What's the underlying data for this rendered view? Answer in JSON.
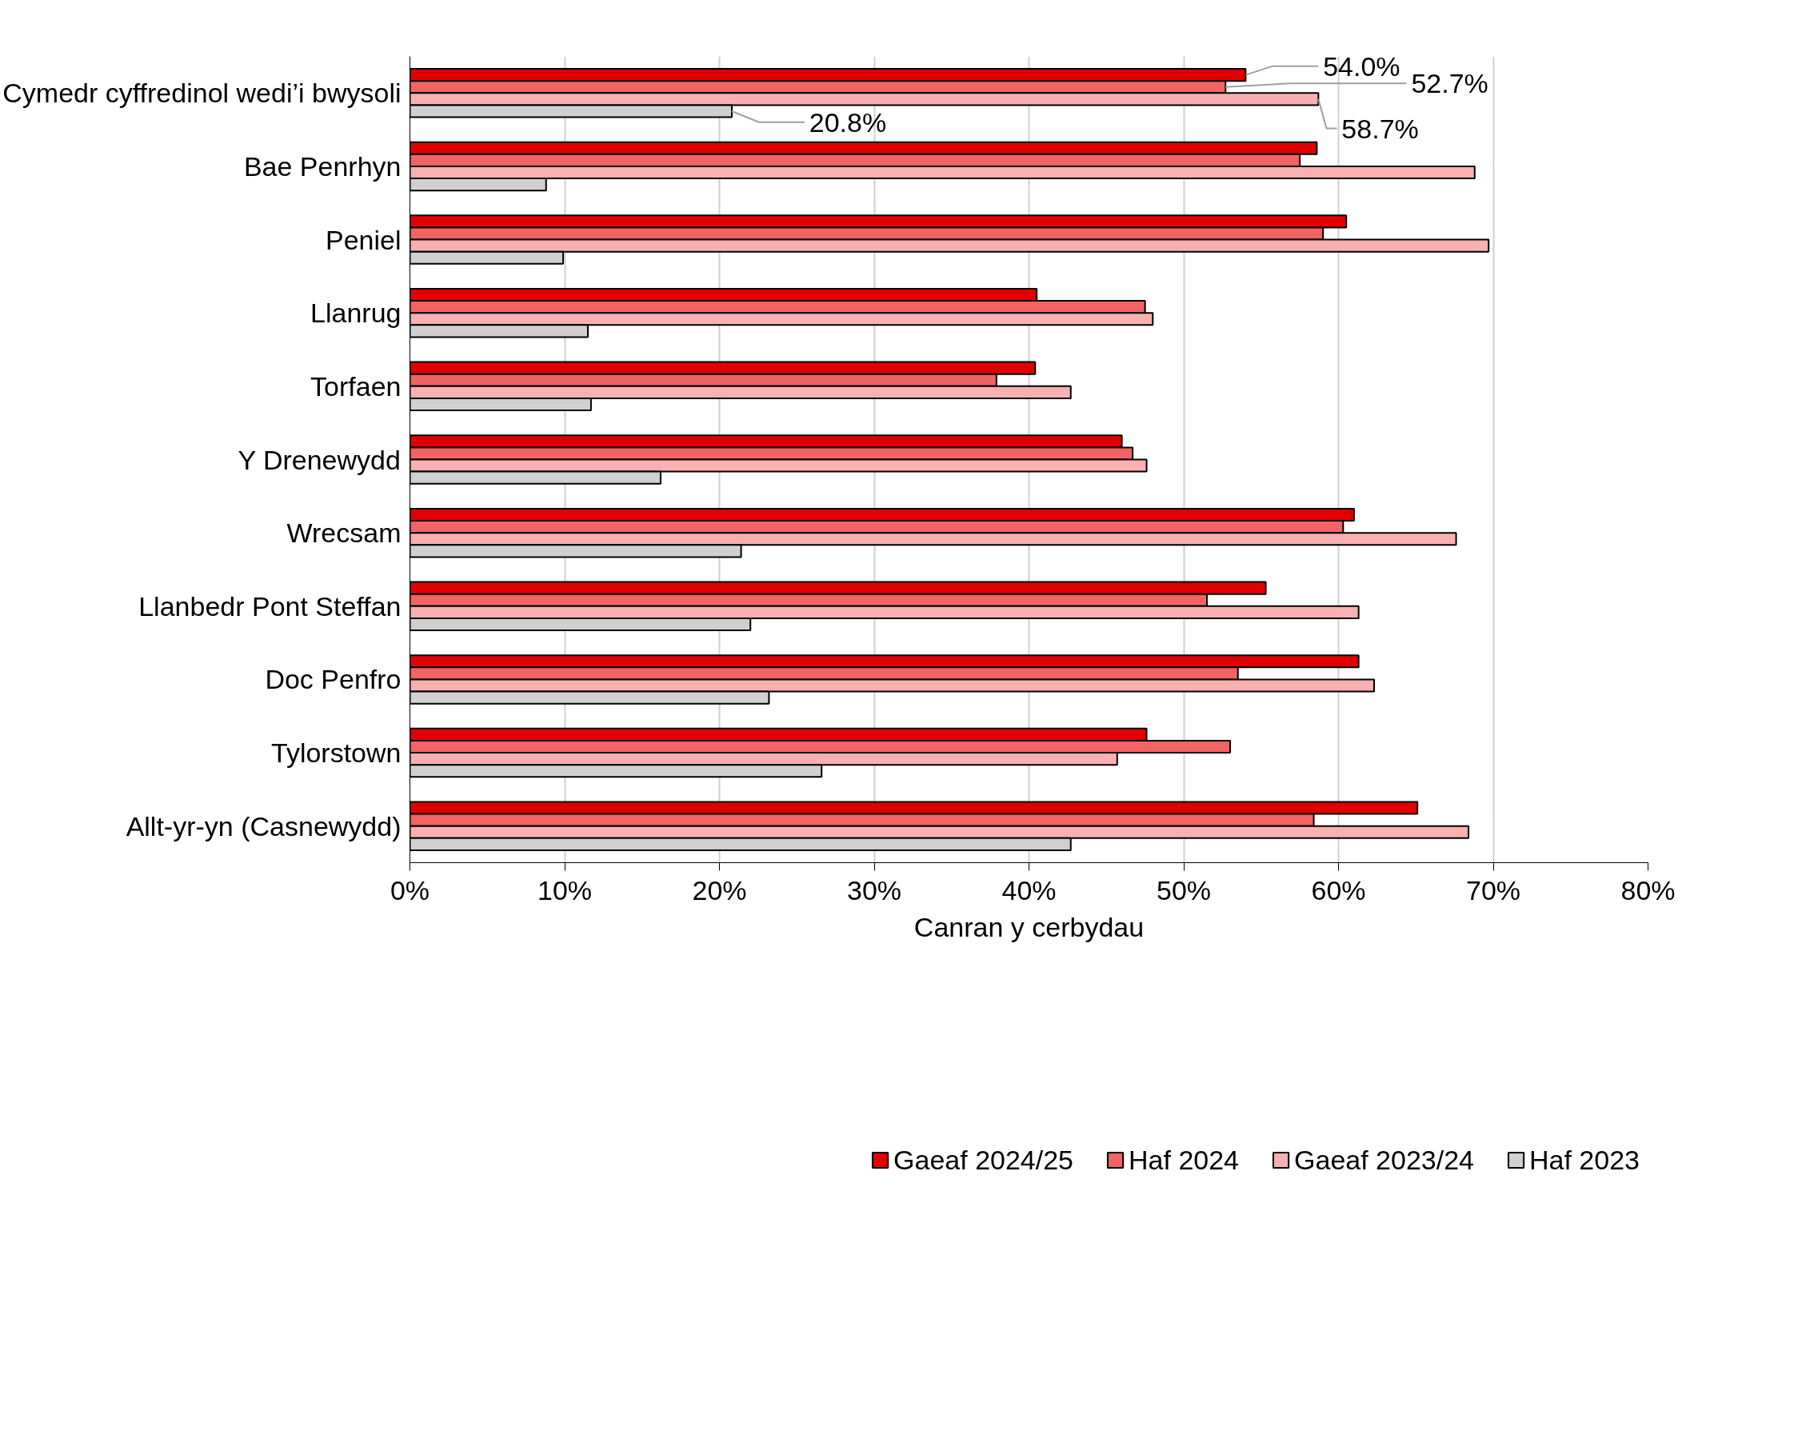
{
  "chart_data": {
    "type": "bar",
    "orientation": "horizontal",
    "xlabel": "Canran y cerbydau",
    "categories": [
      "Cymedr cyffredinol wedi’i bwysoli",
      "Bae Penrhyn",
      "Peniel",
      "Llanrug",
      "Torfaen",
      "Y Drenewydd",
      "Wrecsam",
      "Llanbedr Pont Steffan",
      "Doc Penfro",
      "Tylorstown",
      "Allt-yr-yn (Casnewydd)"
    ],
    "series": [
      {
        "name": "Gaeaf 2024/25",
        "color": "#e00000",
        "values": [
          54.0,
          58.6,
          60.5,
          40.5,
          40.4,
          46.0,
          61.0,
          55.3,
          61.3,
          47.6,
          65.1
        ],
        "value_labels": [
          "54.0%",
          null,
          null,
          null,
          null,
          null,
          null,
          null,
          null,
          null,
          null
        ]
      },
      {
        "name": "Haf 2024",
        "color": "#f26363",
        "values": [
          52.7,
          57.5,
          59.0,
          47.5,
          37.9,
          46.7,
          60.3,
          51.5,
          53.5,
          53.0,
          58.4
        ],
        "value_labels": [
          "52.7%",
          null,
          null,
          null,
          null,
          null,
          null,
          null,
          null,
          null,
          null
        ]
      },
      {
        "name": "Gaeaf 2023/24",
        "color": "#f8b0b0",
        "values": [
          58.7,
          68.8,
          69.7,
          48.0,
          42.7,
          47.6,
          67.6,
          61.3,
          62.3,
          45.7,
          68.4
        ],
        "value_labels": [
          "58.7%",
          null,
          null,
          null,
          null,
          null,
          null,
          null,
          null,
          null,
          null
        ]
      },
      {
        "name": "Haf 2023",
        "color": "#d0d0d0",
        "values": [
          20.8,
          8.8,
          9.9,
          11.5,
          11.7,
          16.2,
          21.4,
          22.0,
          23.2,
          26.6,
          42.7
        ],
        "value_labels": [
          "20.8%",
          null,
          null,
          null,
          null,
          null,
          null,
          null,
          null,
          null,
          null
        ]
      }
    ],
    "xlim": [
      0,
      80
    ],
    "xticks": [
      {
        "value": 0,
        "label": "0%"
      },
      {
        "value": 10,
        "label": "10%"
      },
      {
        "value": 20,
        "label": "20%"
      },
      {
        "value": 30,
        "label": "30%"
      },
      {
        "value": 40,
        "label": "40%"
      },
      {
        "value": 50,
        "label": "50%"
      },
      {
        "value": 60,
        "label": "60%"
      },
      {
        "value": 70,
        "label": "70%"
      },
      {
        "value": 80,
        "label": "80%"
      }
    ],
    "grid": "x",
    "legend": "bottom"
  }
}
